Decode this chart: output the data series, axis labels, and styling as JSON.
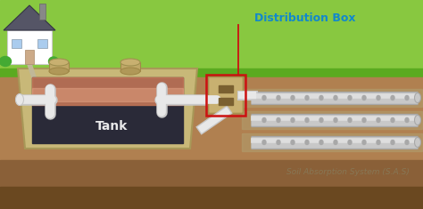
{
  "bg_sky": "#b8dff0",
  "bg_grass_light": "#88c840",
  "bg_grass_dark": "#5aaa20",
  "bg_soil": "#b08050",
  "bg_soil_dark": "#8a6038",
  "bg_soil_darkest": "#6a4820",
  "tank_wall": "#c8b878",
  "tank_wall_dark": "#a89858",
  "tank_inner_dark": "#2a2a38",
  "tank_inner_mid": "#3a3a50",
  "tank_scum": "#c87858",
  "tank_scum_light": "#e8a888",
  "tank_label": "Tank",
  "tank_label_color": "white",
  "distrib_label": "Distribution Box",
  "distrib_label_color": "#1188cc",
  "sas_label": "Soil Absorption System (S.A.S)",
  "sas_label_color": "#887755",
  "pipe_light": "#e8e8e8",
  "pipe_mid": "#c8c8c8",
  "pipe_dark": "#a8a8a8",
  "dbox_face": "#c8b070",
  "dbox_dark": "#a89050",
  "box_outline": "#cc1111",
  "gravel_color": "#b09868",
  "figsize": [
    4.74,
    2.35
  ],
  "dpi": 100
}
